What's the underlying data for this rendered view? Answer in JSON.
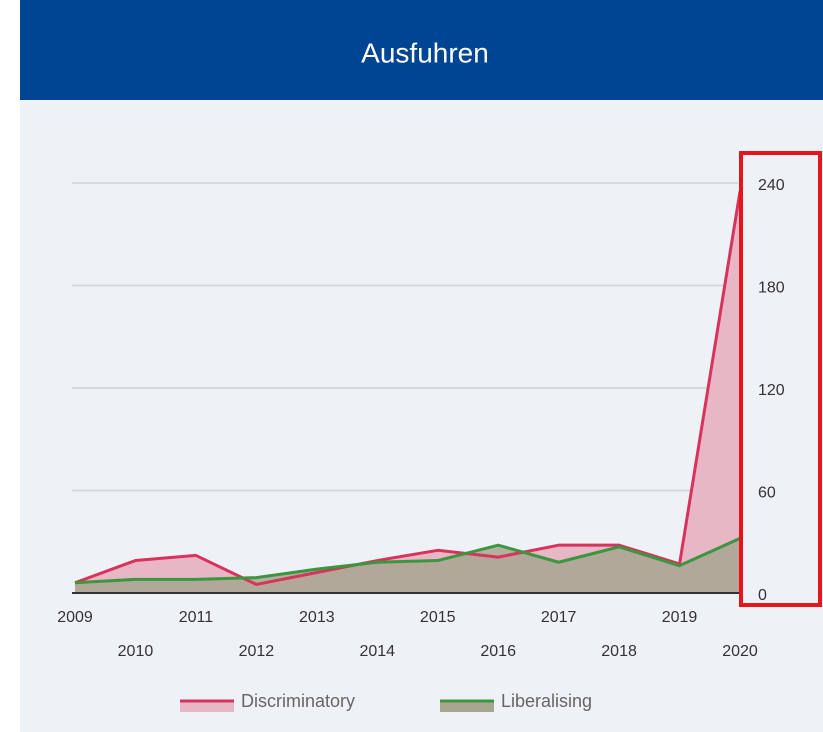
{
  "chart_data": {
    "type": "area",
    "title": "Ausfuhren",
    "x": [
      2009,
      2010,
      2011,
      2012,
      2013,
      2014,
      2015,
      2016,
      2017,
      2018,
      2019,
      2020
    ],
    "xlim": [
      2009,
      2020
    ],
    "series": [
      {
        "name": "Discriminatory",
        "color": "#d7335c",
        "fill": "#e8b7c6",
        "values": [
          6,
          19,
          22,
          5,
          12,
          19,
          25,
          21,
          28,
          28,
          17,
          235
        ]
      },
      {
        "name": "Liberalising",
        "color": "#3a963f",
        "fill": "#a7a690",
        "values": [
          6,
          8,
          8,
          9,
          14,
          18,
          19,
          28,
          18,
          27,
          16,
          32
        ]
      }
    ],
    "ylim": [
      0,
      250
    ],
    "yticks": [
      0,
      60,
      120,
      180,
      240
    ],
    "grid": true
  }
}
